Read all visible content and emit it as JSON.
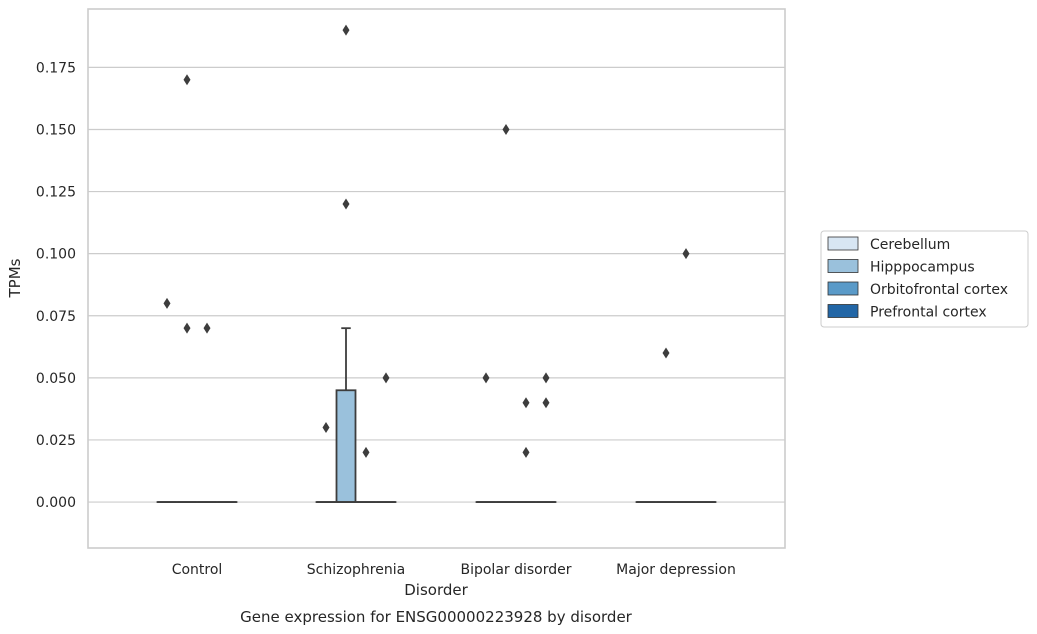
{
  "chart_data": {
    "type": "box",
    "title": "Gene expression for ENSG00000223928 by disorder",
    "xlabel": "Disorder",
    "ylabel": "TPMs",
    "ylim": [
      -0.0185,
      0.1985
    ],
    "yticks": [
      0.0,
      0.025,
      0.05,
      0.075,
      0.1,
      0.125,
      0.15,
      0.175
    ],
    "ytick_labels": [
      "0.000",
      "0.025",
      "0.050",
      "0.075",
      "0.100",
      "0.125",
      "0.150",
      "0.175"
    ],
    "grid": "horizontal",
    "legend_position": "right",
    "categories": [
      "Control",
      "Schizophrenia",
      "Bipolar disorder",
      "Major depression"
    ],
    "series": [
      {
        "name": "Cerebellum",
        "color": "#d8e6f3",
        "boxes": [
          {
            "category": "Control",
            "q1": 0,
            "median": 0,
            "q3": 0,
            "whisker_low": 0,
            "whisker_high": 0,
            "outliers": [
              0.08
            ]
          },
          {
            "category": "Schizophrenia",
            "q1": 0,
            "median": 0,
            "q3": 0,
            "whisker_low": 0,
            "whisker_high": 0,
            "outliers": [
              0.03
            ]
          },
          {
            "category": "Bipolar disorder",
            "q1": 0,
            "median": 0,
            "q3": 0,
            "whisker_low": 0,
            "whisker_high": 0,
            "outliers": [
              0.05
            ]
          },
          {
            "category": "Major depression",
            "q1": 0,
            "median": 0,
            "q3": 0,
            "whisker_low": 0,
            "whisker_high": 0,
            "outliers": []
          }
        ]
      },
      {
        "name": "Hipppocampus",
        "color": "#9ac1dc",
        "boxes": [
          {
            "category": "Control",
            "q1": 0,
            "median": 0,
            "q3": 0,
            "whisker_low": 0,
            "whisker_high": 0,
            "outliers": [
              0.17,
              0.07
            ]
          },
          {
            "category": "Schizophrenia",
            "q1": 0,
            "median": 0,
            "q3": 0.045,
            "whisker_low": 0,
            "whisker_high": 0.07,
            "outliers": [
              0.19,
              0.12
            ]
          },
          {
            "category": "Bipolar disorder",
            "q1": 0,
            "median": 0,
            "q3": 0,
            "whisker_low": 0,
            "whisker_high": 0,
            "outliers": [
              0.15
            ]
          },
          {
            "category": "Major depression",
            "q1": 0,
            "median": 0,
            "q3": 0,
            "whisker_low": 0,
            "whisker_high": 0,
            "outliers": [
              0.06
            ]
          }
        ]
      },
      {
        "name": "Orbitofrontal cortex",
        "color": "#5a9ac8",
        "boxes": [
          {
            "category": "Control",
            "q1": 0,
            "median": 0,
            "q3": 0,
            "whisker_low": 0,
            "whisker_high": 0,
            "outliers": [
              0.07
            ]
          },
          {
            "category": "Schizophrenia",
            "q1": 0,
            "median": 0,
            "q3": 0,
            "whisker_low": 0,
            "whisker_high": 0,
            "outliers": [
              0.02
            ]
          },
          {
            "category": "Bipolar disorder",
            "q1": 0,
            "median": 0,
            "q3": 0,
            "whisker_low": 0,
            "whisker_high": 0,
            "outliers": [
              0.04,
              0.02
            ]
          },
          {
            "category": "Major depression",
            "q1": 0,
            "median": 0,
            "q3": 0,
            "whisker_low": 0,
            "whisker_high": 0,
            "outliers": [
              0.1
            ]
          }
        ]
      },
      {
        "name": "Prefrontal cortex",
        "color": "#2266a6",
        "boxes": [
          {
            "category": "Control",
            "q1": 0,
            "median": 0,
            "q3": 0,
            "whisker_low": 0,
            "whisker_high": 0,
            "outliers": []
          },
          {
            "category": "Schizophrenia",
            "q1": 0,
            "median": 0,
            "q3": 0,
            "whisker_low": 0,
            "whisker_high": 0,
            "outliers": [
              0.05
            ]
          },
          {
            "category": "Bipolar disorder",
            "q1": 0,
            "median": 0,
            "q3": 0,
            "whisker_low": 0,
            "whisker_high": 0,
            "outliers": [
              0.05,
              0.04
            ]
          },
          {
            "category": "Major depression",
            "q1": 0,
            "median": 0,
            "q3": 0,
            "whisker_low": 0,
            "whisker_high": 0,
            "outliers": []
          }
        ]
      }
    ]
  }
}
